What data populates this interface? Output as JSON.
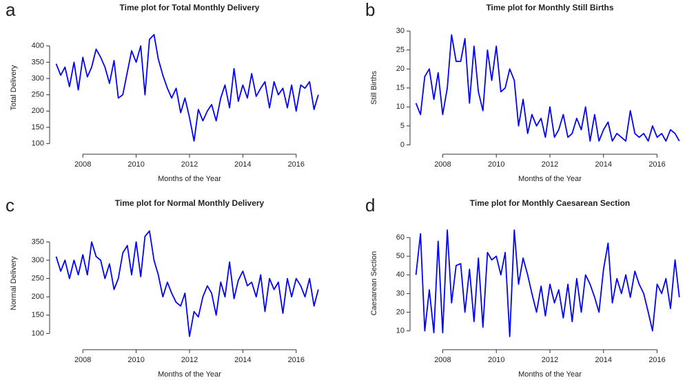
{
  "chart_data": [
    {
      "type": "line",
      "panel_label": "a",
      "title": "Time plot for Total Monthly Delivery",
      "xlabel": "Months of the Year",
      "ylabel": "Total Delivery",
      "color": "#0000ff",
      "x": [
        2007,
        2007.17,
        2007.33,
        2007.5,
        2007.67,
        2007.83,
        2008,
        2008.17,
        2008.33,
        2008.5,
        2008.67,
        2008.83,
        2009,
        2009.17,
        2009.33,
        2009.5,
        2009.67,
        2009.83,
        2010,
        2010.17,
        2010.33,
        2010.5,
        2010.67,
        2010.83,
        2011,
        2011.17,
        2011.33,
        2011.5,
        2011.67,
        2011.83,
        2012,
        2012.17,
        2012.33,
        2012.5,
        2012.67,
        2012.83,
        2013,
        2013.17,
        2013.33,
        2013.5,
        2013.67,
        2013.83,
        2014,
        2014.17,
        2014.33,
        2014.5,
        2014.67,
        2014.83,
        2015,
        2015.17,
        2015.33,
        2015.5,
        2015.67,
        2015.83,
        2016,
        2016.17,
        2016.33,
        2016.5,
        2016.67,
        2016.83
      ],
      "values": [
        345,
        310,
        335,
        275,
        350,
        265,
        365,
        305,
        335,
        390,
        365,
        335,
        285,
        355,
        240,
        250,
        320,
        385,
        350,
        400,
        250,
        420,
        435,
        360,
        310,
        270,
        240,
        270,
        195,
        240,
        180,
        108,
        205,
        170,
        200,
        220,
        170,
        240,
        280,
        210,
        330,
        230,
        280,
        240,
        315,
        245,
        270,
        290,
        210,
        290,
        250,
        270,
        210,
        280,
        200,
        280,
        270,
        290,
        205,
        250
      ],
      "xlim": [
        2006.6,
        2017.4
      ],
      "xticks": [
        2008,
        2010,
        2012,
        2014,
        2016
      ],
      "ylim": [
        95,
        448
      ],
      "yticks": [
        100,
        150,
        200,
        250,
        300,
        350,
        400
      ]
    },
    {
      "type": "line",
      "panel_label": "b",
      "title": "Time plot for Monthly Still Births",
      "xlabel": "Months of the Year",
      "ylabel": "Still Births",
      "color": "#0000ff",
      "x": [
        2007,
        2007.17,
        2007.33,
        2007.5,
        2007.67,
        2007.83,
        2008,
        2008.17,
        2008.33,
        2008.5,
        2008.67,
        2008.83,
        2009,
        2009.17,
        2009.33,
        2009.5,
        2009.67,
        2009.83,
        2010,
        2010.17,
        2010.33,
        2010.5,
        2010.67,
        2010.83,
        2011,
        2011.17,
        2011.33,
        2011.5,
        2011.67,
        2011.83,
        2012,
        2012.17,
        2012.33,
        2012.5,
        2012.67,
        2012.83,
        2013,
        2013.17,
        2013.33,
        2013.5,
        2013.67,
        2013.83,
        2014,
        2014.17,
        2014.33,
        2014.5,
        2014.67,
        2014.83,
        2015,
        2015.17,
        2015.33,
        2015.5,
        2015.67,
        2015.83,
        2016,
        2016.17,
        2016.33,
        2016.5,
        2016.67,
        2016.83
      ],
      "values": [
        11,
        8,
        18,
        20,
        12,
        19,
        8,
        15,
        29,
        22,
        22,
        28,
        11,
        26,
        14,
        9,
        25,
        17,
        26,
        14,
        15,
        20,
        17,
        5,
        12,
        3,
        8,
        5,
        7,
        2,
        10,
        2,
        4,
        8,
        2,
        3,
        7,
        4,
        10,
        1,
        8,
        1,
        4,
        6,
        1,
        3,
        2,
        1,
        9,
        3,
        2,
        3,
        1,
        5,
        2,
        3,
        1,
        4,
        3,
        1
      ],
      "xlim": [
        2006.6,
        2017.4
      ],
      "xticks": [
        2008,
        2010,
        2012,
        2014,
        2016
      ],
      "ylim": [
        -0.1,
        30.2
      ],
      "yticks": [
        0,
        5,
        10,
        15,
        20,
        25,
        30
      ]
    },
    {
      "type": "line",
      "panel_label": "c",
      "title": "Time plot for Normal Monthly Delivery",
      "xlabel": "Months of the Year",
      "ylabel": "Normal Delivery",
      "color": "#0000ff",
      "x": [
        2007,
        2007.17,
        2007.33,
        2007.5,
        2007.67,
        2007.83,
        2008,
        2008.17,
        2008.33,
        2008.5,
        2008.67,
        2008.83,
        2009,
        2009.17,
        2009.33,
        2009.5,
        2009.67,
        2009.83,
        2010,
        2010.17,
        2010.33,
        2010.5,
        2010.67,
        2010.83,
        2011,
        2011.17,
        2011.33,
        2011.5,
        2011.67,
        2011.83,
        2012,
        2012.17,
        2012.33,
        2012.5,
        2012.67,
        2012.83,
        2013,
        2013.17,
        2013.33,
        2013.5,
        2013.67,
        2013.83,
        2014,
        2014.17,
        2014.33,
        2014.5,
        2014.67,
        2014.83,
        2015,
        2015.17,
        2015.33,
        2015.5,
        2015.67,
        2015.83,
        2016,
        2016.17,
        2016.33,
        2016.5,
        2016.67,
        2016.83
      ],
      "values": [
        310,
        270,
        300,
        250,
        300,
        260,
        315,
        260,
        350,
        310,
        300,
        250,
        290,
        220,
        250,
        320,
        340,
        260,
        350,
        255,
        365,
        380,
        300,
        260,
        200,
        240,
        210,
        185,
        175,
        210,
        92,
        160,
        145,
        200,
        230,
        210,
        150,
        240,
        200,
        295,
        195,
        245,
        270,
        230,
        240,
        200,
        260,
        160,
        250,
        220,
        240,
        155,
        250,
        200,
        250,
        230,
        200,
        250,
        175,
        220
      ],
      "xlim": [
        2006.6,
        2017.4
      ],
      "xticks": [
        2008,
        2010,
        2012,
        2014,
        2016
      ],
      "ylim": [
        80,
        394
      ],
      "yticks": [
        100,
        150,
        200,
        250,
        300,
        350
      ]
    },
    {
      "type": "line",
      "panel_label": "d",
      "title": "Time plot for Monthly Caesarean Section",
      "xlabel": "Months of the Year",
      "ylabel": "Caesarean Section",
      "color": "#0000ff",
      "x": [
        2007,
        2007.17,
        2007.33,
        2007.5,
        2007.67,
        2007.83,
        2008,
        2008.17,
        2008.33,
        2008.5,
        2008.67,
        2008.83,
        2009,
        2009.17,
        2009.33,
        2009.5,
        2009.67,
        2009.83,
        2010,
        2010.17,
        2010.33,
        2010.5,
        2010.67,
        2010.83,
        2011,
        2011.17,
        2011.33,
        2011.5,
        2011.67,
        2011.83,
        2012,
        2012.17,
        2012.33,
        2012.5,
        2012.67,
        2012.83,
        2013,
        2013.17,
        2013.33,
        2013.5,
        2013.67,
        2013.83,
        2014,
        2014.17,
        2014.33,
        2014.5,
        2014.67,
        2014.83,
        2015,
        2015.17,
        2015.33,
        2015.5,
        2015.67,
        2015.83,
        2016,
        2016.17,
        2016.33,
        2016.5,
        2016.67,
        2016.83
      ],
      "values": [
        40,
        62,
        10,
        32,
        9,
        58,
        9,
        64,
        25,
        45,
        46,
        20,
        43,
        15,
        49,
        12,
        52,
        48,
        50,
        40,
        52,
        7,
        64,
        35,
        49,
        40,
        30,
        20,
        34,
        18,
        35,
        25,
        32,
        17,
        35,
        15,
        38,
        20,
        40,
        35,
        28,
        20,
        43,
        57,
        25,
        38,
        30,
        40,
        28,
        42,
        35,
        30,
        20,
        10,
        35,
        30,
        38,
        22,
        48,
        28
      ],
      "xlim": [
        2006.6,
        2017.4
      ],
      "xticks": [
        2008,
        2010,
        2012,
        2014,
        2016
      ],
      "ylim": [
        4.7,
        66.3
      ],
      "yticks": [
        10,
        20,
        30,
        40,
        50,
        60
      ]
    }
  ]
}
